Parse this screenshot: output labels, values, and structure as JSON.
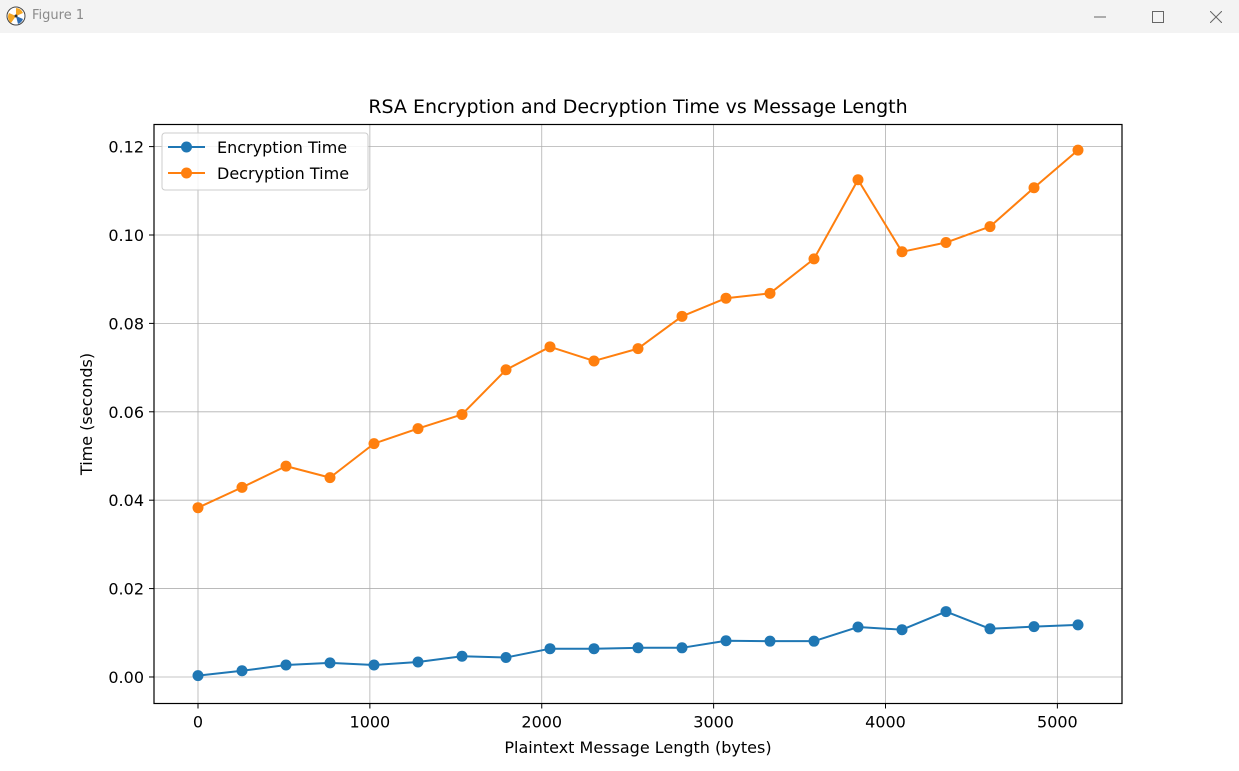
{
  "window": {
    "title": "Figure 1",
    "icons": [
      "matplotlib-logo-icon",
      "minimize-icon",
      "maximize-icon",
      "close-icon"
    ]
  },
  "chart_data": {
    "type": "line",
    "title": "RSA Encryption and Decryption Time vs Message Length",
    "xlabel": "Plaintext Message Length (bytes)",
    "ylabel": "Time (seconds)",
    "xlim": [
      -256,
      5376
    ],
    "ylim": [
      -0.006,
      0.125
    ],
    "xticks": [
      0,
      1000,
      2000,
      3000,
      4000,
      5000
    ],
    "xtick_labels": [
      "0",
      "1000",
      "2000",
      "3000",
      "4000",
      "5000"
    ],
    "yticks": [
      0.0,
      0.02,
      0.04,
      0.06,
      0.08,
      0.1,
      0.12
    ],
    "ytick_labels": [
      "0.00",
      "0.02",
      "0.04",
      "0.06",
      "0.08",
      "0.10",
      "0.12"
    ],
    "grid": true,
    "legend_position": "upper-left",
    "x": [
      0,
      256,
      512,
      768,
      1024,
      1280,
      1536,
      1792,
      2048,
      2304,
      2560,
      2816,
      3072,
      3328,
      3584,
      3840,
      4096,
      4352,
      4608,
      4864,
      5120
    ],
    "series": [
      {
        "name": "Encryption Time",
        "color": "#1f77b4",
        "values": [
          0.0003,
          0.0014,
          0.0027,
          0.0032,
          0.0027,
          0.0034,
          0.0047,
          0.0044,
          0.0064,
          0.0064,
          0.0066,
          0.0066,
          0.0082,
          0.0081,
          0.0081,
          0.0113,
          0.0107,
          0.0148,
          0.0109,
          0.0114,
          0.0118
        ]
      },
      {
        "name": "Decryption Time",
        "color": "#ff7f0e",
        "values": [
          0.0383,
          0.0429,
          0.0477,
          0.0451,
          0.0528,
          0.0562,
          0.0594,
          0.0695,
          0.0747,
          0.0715,
          0.0743,
          0.0816,
          0.0857,
          0.0868,
          0.0946,
          0.1125,
          0.0962,
          0.0983,
          0.1019,
          0.1107,
          0.1192
        ]
      }
    ]
  }
}
